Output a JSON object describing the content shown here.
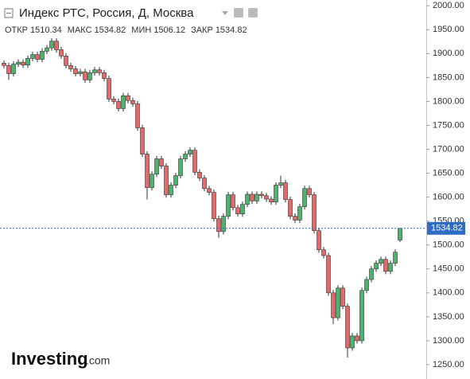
{
  "chart_data": {
    "type": "candlestick",
    "title": "Индекс РТС, Россия, Д, Москва",
    "ohlc_labels": {
      "open": "ОТКР",
      "high": "МАКС",
      "low": "МИН",
      "close": "ЗАКР"
    },
    "logo": [
      "Investing",
      ".com"
    ],
    "up_color": "#4fb36f",
    "down_color": "#e26a6a",
    "price_line_color": "#2f6cc6",
    "ylim": [
      1220,
      2012
    ],
    "yticks": [
      {
        "value": 1250,
        "label": "1250.00"
      },
      {
        "value": 1300,
        "label": "1300.00"
      },
      {
        "value": 1350,
        "label": "1350.00"
      },
      {
        "value": 1400,
        "label": "1400.00"
      },
      {
        "value": 1450,
        "label": "1450.00"
      },
      {
        "value": 1500,
        "label": "1500.00"
      },
      {
        "value": 1550,
        "label": "1550.00"
      },
      {
        "value": 1600,
        "label": "1600.00"
      },
      {
        "value": 1650,
        "label": "1650.00"
      },
      {
        "value": 1700,
        "label": "1700.00"
      },
      {
        "value": 1750,
        "label": "1750.00"
      },
      {
        "value": 1800,
        "label": "1800.00"
      },
      {
        "value": 1850,
        "label": "1850.00"
      },
      {
        "value": 1900,
        "label": "1900.00"
      },
      {
        "value": 1950,
        "label": "1950.00"
      },
      {
        "value": 2000,
        "label": "2000.00"
      }
    ],
    "open": [
      1880,
      1875,
      1858,
      1878,
      1882,
      1876,
      1890,
      1898,
      1888,
      1905,
      1912,
      1926,
      1908,
      1895,
      1875,
      1868,
      1858,
      1862,
      1845,
      1860,
      1866,
      1860,
      1848,
      1805,
      1800,
      1785,
      1812,
      1802,
      1795,
      1745,
      1690,
      1620,
      1648,
      1680,
      1665,
      1605,
      1625,
      1645,
      1680,
      1690,
      1698,
      1652,
      1640,
      1618,
      1610,
      1555,
      1528,
      1560,
      1605,
      1578,
      1565,
      1585,
      1606,
      1592,
      1606,
      1603,
      1596,
      1590,
      1625,
      1630,
      1595,
      1560,
      1552,
      1580,
      1618,
      1605,
      1530,
      1490,
      1478,
      1400,
      1348,
      1410,
      1372,
      1285,
      1310,
      1300,
      1405,
      1428,
      1450,
      1462,
      1470,
      1445,
      1462,
      1510.34
    ],
    "high": [
      1886,
      1881,
      1884,
      1888,
      1888,
      1896,
      1904,
      1904,
      1911,
      1918,
      1932,
      1932,
      1914,
      1901,
      1881,
      1874,
      1868,
      1868,
      1866,
      1872,
      1872,
      1866,
      1854,
      1811,
      1806,
      1818,
      1818,
      1808,
      1801,
      1751,
      1696,
      1654,
      1686,
      1686,
      1671,
      1631,
      1651,
      1686,
      1696,
      1704,
      1704,
      1658,
      1646,
      1624,
      1616,
      1561,
      1566,
      1611,
      1611,
      1584,
      1591,
      1612,
      1612,
      1612,
      1612,
      1609,
      1602,
      1631,
      1645,
      1636,
      1601,
      1566,
      1586,
      1624,
      1624,
      1611,
      1536,
      1496,
      1484,
      1406,
      1416,
      1416,
      1378,
      1316,
      1316,
      1411,
      1434,
      1456,
      1468,
      1476,
      1476,
      1468,
      1491,
      1534.82
    ],
    "low": [
      1869,
      1845,
      1852,
      1872,
      1870,
      1870,
      1884,
      1882,
      1882,
      1899,
      1906,
      1902,
      1889,
      1869,
      1862,
      1852,
      1852,
      1839,
      1839,
      1854,
      1854,
      1842,
      1799,
      1794,
      1779,
      1779,
      1796,
      1789,
      1739,
      1684,
      1595,
      1614,
      1642,
      1659,
      1599,
      1599,
      1619,
      1639,
      1674,
      1684,
      1646,
      1634,
      1612,
      1604,
      1549,
      1515,
      1522,
      1554,
      1572,
      1559,
      1559,
      1579,
      1586,
      1586,
      1597,
      1590,
      1584,
      1584,
      1619,
      1589,
      1554,
      1546,
      1546,
      1574,
      1599,
      1524,
      1484,
      1472,
      1394,
      1335,
      1342,
      1366,
      1265,
      1279,
      1294,
      1294,
      1399,
      1422,
      1444,
      1456,
      1439,
      1439,
      1456,
      1506.12
    ],
    "close": [
      1875,
      1858,
      1878,
      1882,
      1876,
      1890,
      1898,
      1888,
      1905,
      1912,
      1926,
      1908,
      1895,
      1875,
      1868,
      1858,
      1862,
      1845,
      1860,
      1866,
      1860,
      1848,
      1805,
      1800,
      1785,
      1812,
      1802,
      1795,
      1745,
      1690,
      1620,
      1648,
      1680,
      1665,
      1605,
      1625,
      1645,
      1680,
      1690,
      1698,
      1652,
      1640,
      1618,
      1610,
      1555,
      1528,
      1560,
      1605,
      1578,
      1565,
      1585,
      1606,
      1592,
      1606,
      1603,
      1596,
      1590,
      1625,
      1630,
      1595,
      1560,
      1552,
      1580,
      1618,
      1605,
      1530,
      1490,
      1478,
      1400,
      1348,
      1410,
      1372,
      1285,
      1310,
      1300,
      1405,
      1428,
      1450,
      1462,
      1470,
      1445,
      1462,
      1485,
      1534.82
    ]
  }
}
